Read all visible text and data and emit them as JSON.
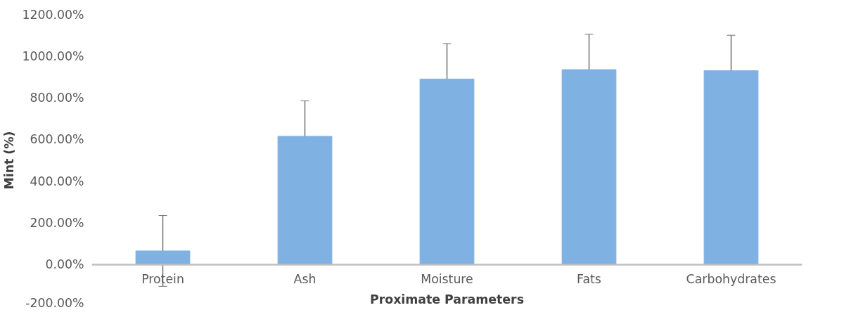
{
  "chart_data": {
    "type": "bar",
    "xlabel": "Proximate Parameters",
    "ylabel": "Mint (%)",
    "categories": [
      "Protein",
      "Ash",
      "Moisture",
      "Fats",
      "Carbohydrates"
    ],
    "values": [
      65,
      615,
      890,
      935,
      930
    ],
    "errors": [
      170,
      170,
      170,
      170,
      170
    ],
    "color": "#7fb1e3",
    "ylim": [
      -200,
      1200
    ],
    "yticks": [
      {
        "value": -200,
        "label": "-200.00%"
      },
      {
        "value": 0,
        "label": "0.00%"
      },
      {
        "value": 200,
        "label": "200.00%"
      },
      {
        "value": 400,
        "label": "400.00%"
      },
      {
        "value": 600,
        "label": "600.00%"
      },
      {
        "value": 800,
        "label": "800.00%"
      },
      {
        "value": 1000,
        "label": "1000.00%"
      },
      {
        "value": 1200,
        "label": "1200.00%"
      }
    ],
    "grid": false
  }
}
